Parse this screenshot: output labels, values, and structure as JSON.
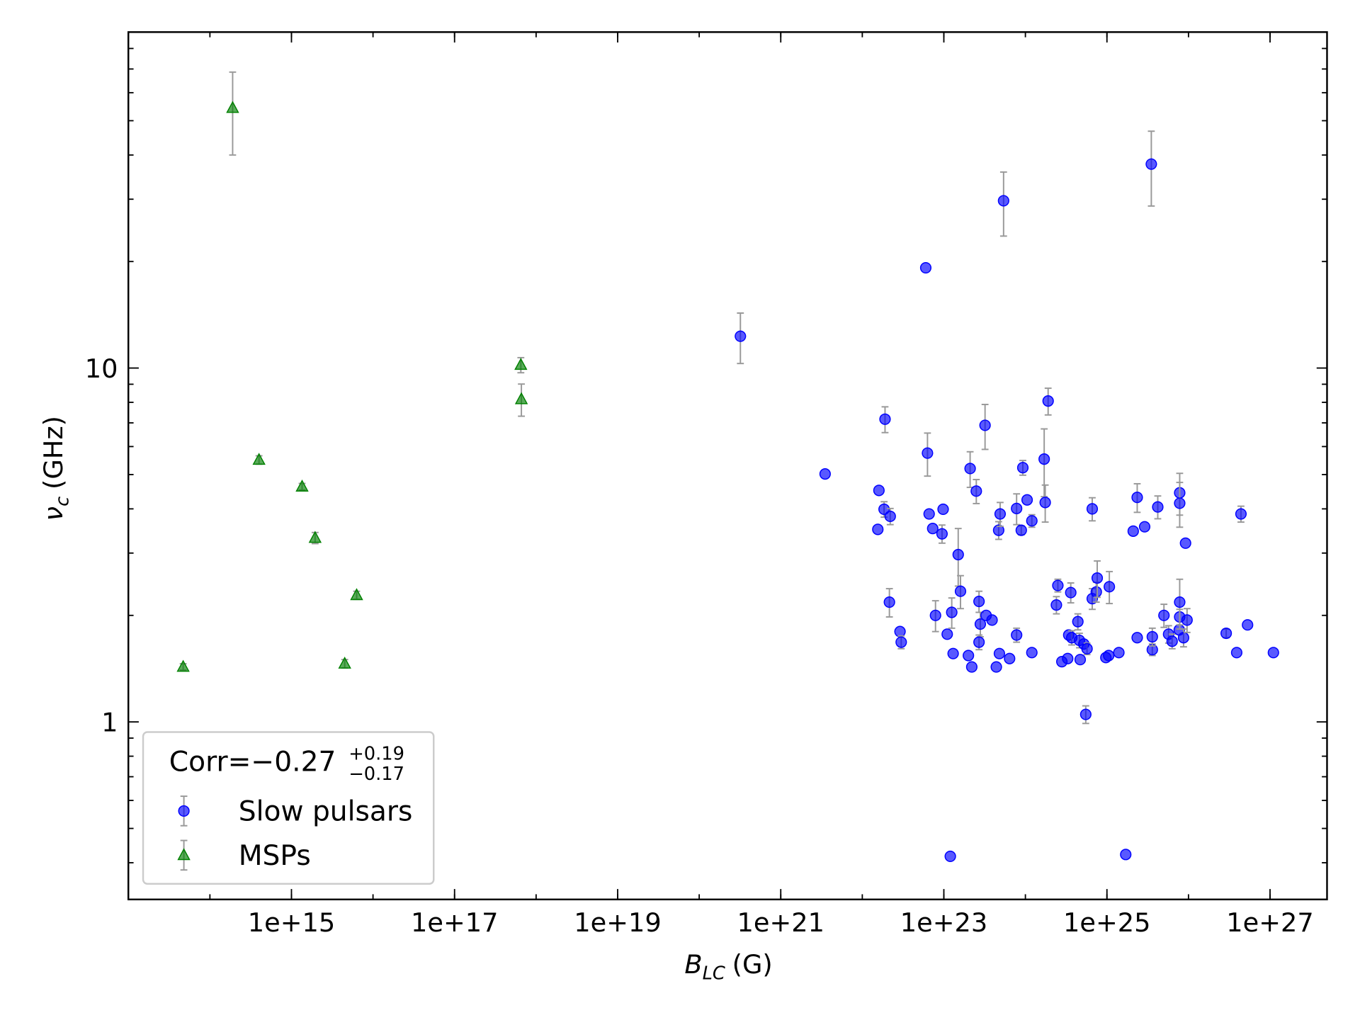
{
  "chart_data": {
    "type": "scatter",
    "xlabel": {
      "symbol": "B",
      "subscript": "LC",
      "unit": "(G)"
    },
    "ylabel": {
      "symbol": "ν",
      "subscript": "c",
      "unit": "(GHz)"
    },
    "legend_title": {
      "main": "Corr=−0.27",
      "sup": "+0.19",
      "sub": "−0.17"
    },
    "legend": "lower left",
    "log_x": true,
    "log_y": true,
    "xlim": [
      10000000000000.0,
      5e+27
    ],
    "ylim": [
      0.315,
      89
    ],
    "xticks": [
      {
        "value": 1000000000000000.0,
        "label": "1e+15"
      },
      {
        "value": 1e+17,
        "label": "1e+17"
      },
      {
        "value": 1e+19,
        "label": "1e+19"
      },
      {
        "value": 1e+21,
        "label": "1e+21"
      },
      {
        "value": 1e+23,
        "label": "1e+23"
      },
      {
        "value": 1e+25,
        "label": "1e+25"
      },
      {
        "value": 1e+27,
        "label": "1e+27"
      }
    ],
    "yticks": [
      1,
      10
    ],
    "error_color": "#999999",
    "series": [
      {
        "name": "Slow pulsars",
        "color": "#0000ff",
        "marker": "circle",
        "x": [
          3.2e+20,
          3.5e+21,
          6e+22,
          5.4e+23,
          3.5e+25,
          1.9e+22,
          1.6e+22,
          1.85e+22,
          2.2e+22,
          1.55e+22,
          2.15e+22,
          2.9e+22,
          3e+22,
          6.3e+22,
          6.6e+22,
          7.3e+22,
          9.8e+22,
          9.5e+22,
          7.9e+22,
          1.1e+23,
          1.25e+23,
          1.3e+23,
          1.5e+23,
          1.6e+23,
          2e+23,
          2.1e+23,
          2.2e+23,
          2.5e+23,
          2.7e+23,
          2.8e+23,
          2.7e+23,
          3.2e+23,
          3.3e+23,
          3.9e+23,
          4.4e+23,
          4.7e+23,
          4.8e+23,
          4.9e+23,
          6.4e+23,
          7.8e+23,
          7.8e+23,
          8.9e+23,
          9.3e+23,
          1.05e+24,
          1.2e+24,
          1.2e+24,
          1.7e+24,
          1.75e+24,
          1.9e+24,
          2.4e+24,
          2.5e+24,
          2.8e+24,
          3.3e+24,
          3.4e+24,
          3.6e+24,
          3.7e+24,
          4.4e+24,
          4.6e+24,
          4.7e+24,
          5.2e+24,
          5.7e+24,
          5.5e+24,
          6.6e+24,
          6.6e+24,
          7.4e+24,
          7.6e+24,
          9.7e+24,
          1.05e+25,
          1.07e+25,
          1.4e+25,
          1.7e+25,
          1.2e+23,
          2.1e+25,
          2.35e+25,
          2.35e+25,
          2.9e+25,
          3.6e+25,
          3.6e+25,
          4.2e+25,
          5e+25,
          5.7e+25,
          6.3e+25,
          7.7e+25,
          7.8e+25,
          7.8e+25,
          7.8e+25,
          7.8e+25,
          8.7e+25,
          9.2e+25,
          9.6e+25,
          2.9e+26,
          3.9e+26,
          4.4e+26,
          5.3e+26,
          1.1e+27
        ],
        "values": [
          12.3,
          5.02,
          19.2,
          29.7,
          37.7,
          7.17,
          4.51,
          3.99,
          3.81,
          3.5,
          2.18,
          1.8,
          1.68,
          5.75,
          3.87,
          3.52,
          3.99,
          3.4,
          2.0,
          1.77,
          2.04,
          1.56,
          2.97,
          2.34,
          1.54,
          5.2,
          1.43,
          4.49,
          2.19,
          1.89,
          1.68,
          6.89,
          2.0,
          1.94,
          1.43,
          3.48,
          1.56,
          3.87,
          1.51,
          4.01,
          1.76,
          3.48,
          5.23,
          4.24,
          1.57,
          3.7,
          5.53,
          4.17,
          8.07,
          2.14,
          2.43,
          1.48,
          1.51,
          1.76,
          2.32,
          1.73,
          1.92,
          1.7,
          1.5,
          1.66,
          1.61,
          1.05,
          4.0,
          2.23,
          2.33,
          2.55,
          1.52,
          1.54,
          2.41,
          1.57,
          0.422,
          0.417,
          3.46,
          4.31,
          1.73,
          3.56,
          1.6,
          1.74,
          4.05,
          2.0,
          1.77,
          1.69,
          1.82,
          4.44,
          4.15,
          1.98,
          2.18,
          1.73,
          3.2,
          1.94,
          1.78,
          1.57,
          3.87,
          1.88,
          1.57
        ],
        "errors": [
          2.0,
          null,
          null,
          6.1,
          9,
          0.6,
          null,
          0.2,
          0.2,
          null,
          0.2,
          null,
          0.07,
          0.8,
          null,
          null,
          null,
          0.2,
          0.2,
          null,
          0.2,
          null,
          0.55,
          0.25,
          null,
          0.6,
          null,
          0.35,
          0.15,
          0.15,
          0.08,
          1.0,
          null,
          null,
          null,
          0.2,
          null,
          0.3,
          null,
          0.4,
          0.08,
          0.1,
          0.25,
          null,
          null,
          0.15,
          1.2,
          0.5,
          0.7,
          0.12,
          0.1,
          null,
          null,
          null,
          0.15,
          0.08,
          0.1,
          0.08,
          null,
          null,
          0.06,
          0.06,
          0.3,
          0.15,
          0.15,
          0.3,
          null,
          null,
          0.25,
          null,
          null,
          null,
          null,
          0.4,
          null,
          null,
          0.06,
          0.1,
          0.3,
          0.15,
          0.1,
          0.08,
          null,
          0.6,
          0.6,
          0.1,
          0.35,
          0.1,
          null,
          0.15,
          0.05,
          null,
          0.2,
          null,
          null
        ]
      },
      {
        "name": "MSPs",
        "color": "#008000",
        "marker": "triangle",
        "x": [
          47000000000000.0,
          190000000000000.0,
          400000000000000.0,
          1350000000000000.0,
          1950000000000000.0,
          4500000000000000.0,
          6300000000000000.0,
          6.5e+17,
          6.6e+17
        ],
        "values": [
          1.43,
          54.3,
          5.5,
          4.62,
          3.31,
          1.46,
          2.28,
          10.2,
          8.16
        ],
        "errors": [
          0.03,
          14.3,
          0.15,
          0.1,
          0.12,
          0.04,
          0.06,
          0.5,
          0.85
        ]
      }
    ]
  }
}
